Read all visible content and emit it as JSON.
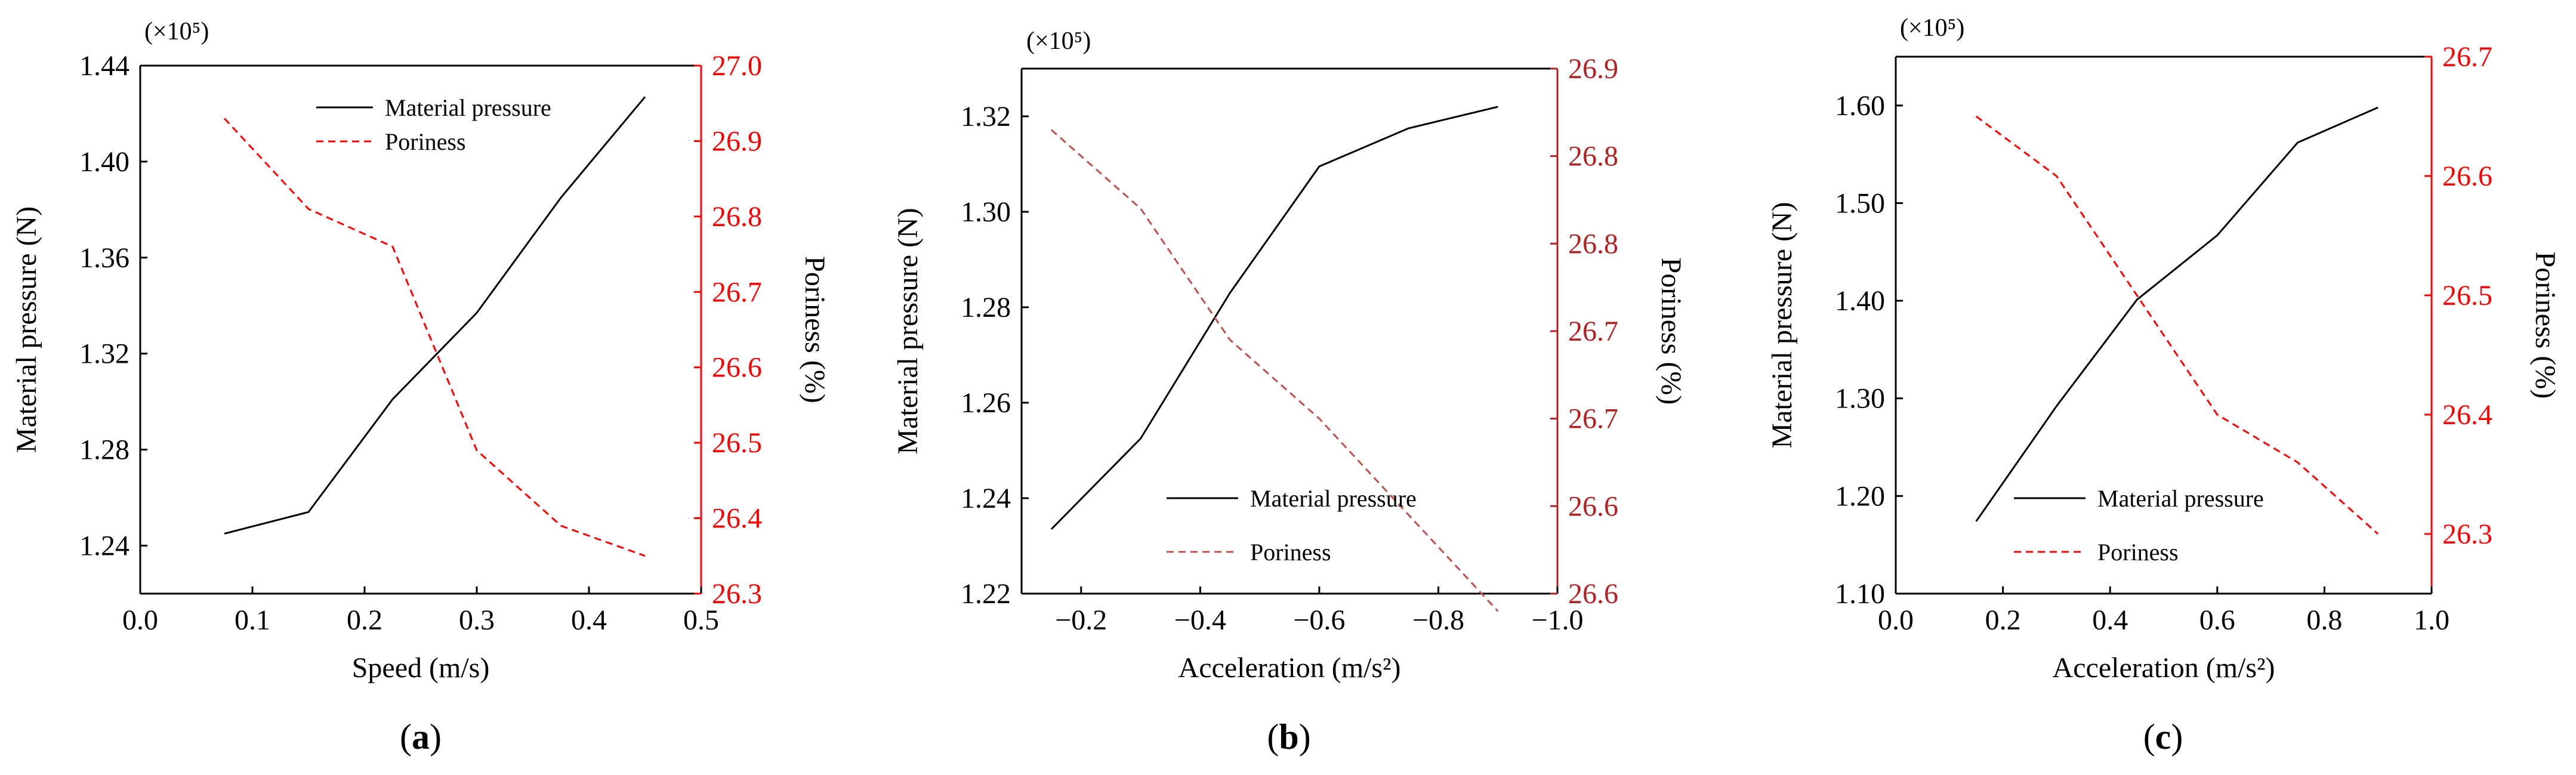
{
  "colors": {
    "left_axis": "#000000",
    "red_axis": "#ff0000",
    "dark_red_axis": "#b22222",
    "red_line": "#ff0000",
    "dark_red_line": "#c0504d"
  },
  "chart_data": [
    {
      "panel_label": "a",
      "type": "line",
      "multiplier_label": "(×10⁵)",
      "xlabel": "Speed (m/s)",
      "ylabel_left": "Material pressure (N)",
      "ylabel_right": "Poriness (%)",
      "xlim": [
        0.0,
        0.5
      ],
      "x_ticks": [
        0.0,
        0.1,
        0.2,
        0.3,
        0.4,
        0.5
      ],
      "x_tick_labels": [
        "0.0",
        "0.1",
        "0.2",
        "0.3",
        "0.4",
        "0.5"
      ],
      "ylim_left": [
        1.22,
        1.44
      ],
      "y_ticks_left": [
        1.24,
        1.28,
        1.32,
        1.36,
        1.4,
        1.44
      ],
      "y_tick_labels_left": [
        "1.24",
        "1.28",
        "1.32",
        "1.36",
        "1.40",
        "1.44"
      ],
      "ylim_right": [
        26.3,
        27.0
      ],
      "y_ticks_right": [
        26.3,
        26.4,
        26.5,
        26.6,
        26.7,
        26.8,
        26.9,
        27.0
      ],
      "y_tick_labels_right": [
        "26.3",
        "26.4",
        "26.5",
        "26.6",
        "26.7",
        "26.8",
        "26.9",
        "27.0"
      ],
      "right_axis_color": "#ff0000",
      "legend_position": "top-center",
      "series": [
        {
          "name": "Material pressure",
          "axis": "left",
          "style": "solid",
          "color": "#000000",
          "x": [
            0.075,
            0.15,
            0.225,
            0.3,
            0.375,
            0.45
          ],
          "y": [
            1.245,
            1.254,
            1.301,
            1.337,
            1.385,
            1.427
          ]
        },
        {
          "name": "Poriness",
          "axis": "right",
          "style": "dashed",
          "color": "#ff0000",
          "x": [
            0.075,
            0.15,
            0.225,
            0.3,
            0.375,
            0.45
          ],
          "y": [
            26.93,
            26.81,
            26.76,
            26.49,
            26.39,
            26.35
          ]
        }
      ]
    },
    {
      "panel_label": "b",
      "type": "line",
      "multiplier_label": "(×10⁵)",
      "xlabel": "Acceleration (m/s²)",
      "ylabel_left": "Material pressure  (N)",
      "ylabel_right": "Poriness (%)",
      "xlim": [
        -0.1,
        -1.0
      ],
      "x_ticks": [
        -0.2,
        -0.4,
        -0.6,
        -0.8,
        -1.0
      ],
      "x_tick_labels": [
        "−0.2",
        "−0.4",
        "−0.6",
        "−0.8",
        "−1.0"
      ],
      "ylim_left": [
        1.22,
        1.33
      ],
      "y_ticks_left": [
        1.22,
        1.24,
        1.26,
        1.28,
        1.3,
        1.32
      ],
      "y_tick_labels_left": [
        "1.22",
        "1.24",
        "1.26",
        "1.28",
        "1.30",
        "1.32"
      ],
      "ylim_right": [
        26.6,
        26.9
      ],
      "y_ticks_right": [
        26.6,
        26.65,
        26.7,
        26.75,
        26.8,
        26.85,
        26.9
      ],
      "y_tick_labels_right": [
        "26.6",
        "26.6",
        "26.7",
        "26.7",
        "26.8",
        "26.8",
        "26.9"
      ],
      "right_axis_color": "#b22222",
      "legend_position": "bottom-right",
      "series": [
        {
          "name": "Material pressure",
          "axis": "left",
          "style": "solid",
          "color": "#000000",
          "x": [
            -0.15,
            -0.3,
            -0.45,
            -0.6,
            -0.75,
            -0.9
          ],
          "y": [
            1.2335,
            1.2525,
            1.283,
            1.3095,
            1.3175,
            1.322
          ]
        },
        {
          "name": "Poriness",
          "axis": "right",
          "style": "dashed",
          "color": "#c0504d",
          "x": [
            -0.15,
            -0.3,
            -0.45,
            -0.6,
            -0.75,
            -0.9
          ],
          "y": [
            26.865,
            26.82,
            26.745,
            26.7,
            26.645,
            26.59
          ]
        }
      ]
    },
    {
      "panel_label": "c",
      "type": "line",
      "multiplier_label": "(×10⁵)",
      "xlabel": "Acceleration (m/s²)",
      "ylabel_left": "Material pressure (N)",
      "ylabel_right": "Poriness (%)",
      "xlim": [
        0.0,
        1.0
      ],
      "x_ticks": [
        0.0,
        0.2,
        0.4,
        0.6,
        0.8,
        1.0
      ],
      "x_tick_labels": [
        "0.0",
        "0.2",
        "0.4",
        "0.6",
        "0.8",
        "1.0"
      ],
      "ylim_left": [
        1.1,
        1.65
      ],
      "y_ticks_left": [
        1.1,
        1.2,
        1.3,
        1.4,
        1.5,
        1.6
      ],
      "y_tick_labels_left": [
        "1.10",
        "1.20",
        "1.30",
        "1.40",
        "1.50",
        "1.60"
      ],
      "ylim_right": [
        26.25,
        26.7
      ],
      "y_ticks_right": [
        26.3,
        26.4,
        26.5,
        26.6,
        26.7
      ],
      "y_tick_labels_right": [
        "26.3",
        "26.4",
        "26.5",
        "26.6",
        "26.7"
      ],
      "right_axis_color": "#ff0000",
      "legend_position": "bottom-center",
      "series": [
        {
          "name": "Material pressure",
          "axis": "left",
          "style": "solid",
          "color": "#000000",
          "x": [
            0.15,
            0.3,
            0.45,
            0.6,
            0.75,
            0.9
          ],
          "y": [
            1.174,
            1.292,
            1.401,
            1.467,
            1.562,
            1.598
          ]
        },
        {
          "name": "Poriness",
          "axis": "right",
          "style": "dashed",
          "color": "#ff0000",
          "x": [
            0.15,
            0.3,
            0.45,
            0.6,
            0.75,
            0.9
          ],
          "y": [
            26.65,
            26.6,
            26.5,
            26.4,
            26.36,
            26.3
          ]
        }
      ]
    }
  ]
}
